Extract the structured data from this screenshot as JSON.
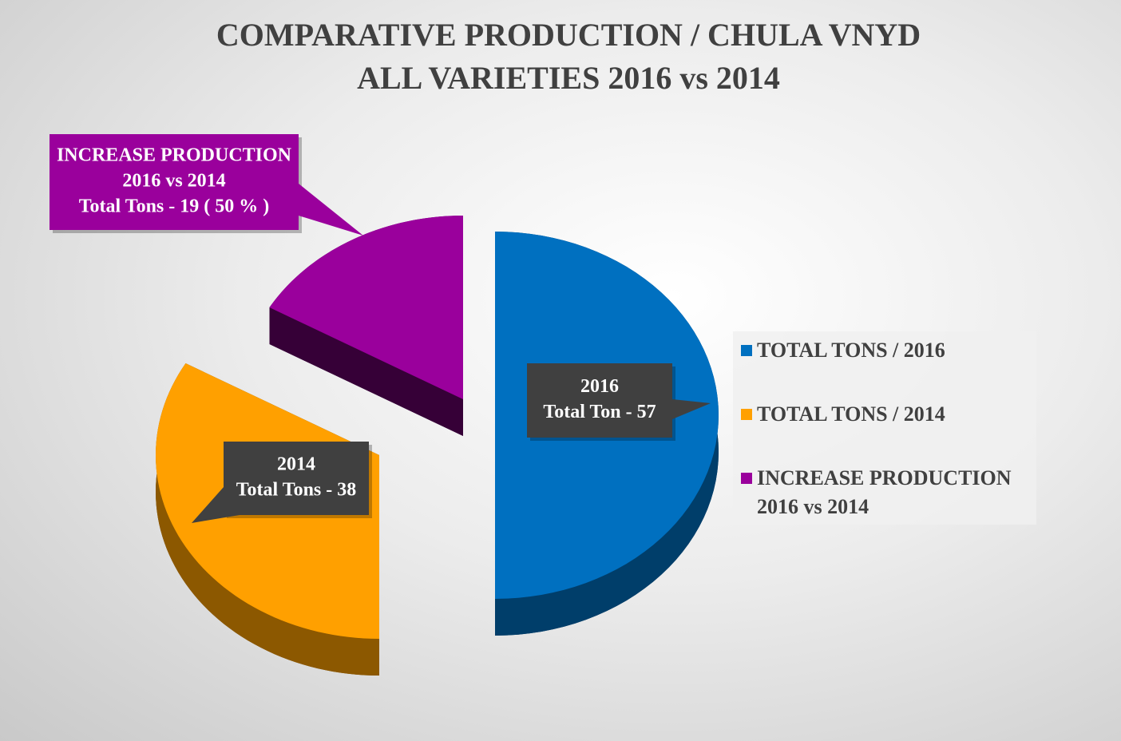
{
  "chart_data": {
    "type": "pie",
    "title": [
      "COMPARATIVE PRODUCTION / CHULA VNYD",
      "ALL VARIETIES 2016 vs 2014"
    ],
    "categories": [
      "TOTAL TONS / 2016",
      "TOTAL TONS / 2014",
      "INCREASE PRODUCTION 2016 vs 2014"
    ],
    "values": [
      57,
      38,
      19
    ],
    "value_labels": [
      [
        "2016",
        "Total Ton - 57"
      ],
      [
        "2014",
        "Total Tons - 38"
      ],
      [
        "INCREASE PRODUCTION",
        "2016 vs 2014",
        "Total Tons - 19  ( 50 % )"
      ]
    ],
    "colors": [
      "#0070c0",
      "#ffa000",
      "#9a009c"
    ],
    "legend": "right"
  }
}
